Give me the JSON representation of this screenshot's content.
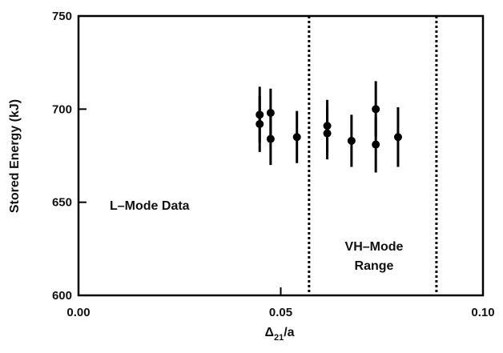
{
  "chart_data": {
    "type": "scatter",
    "xlabel": "Δ21/a",
    "xlabel_main": "Δ",
    "xlabel_sub": "21",
    "xlabel_tail": "/a",
    "ylabel": "Stored Energy (kJ)",
    "xlim": [
      0.0,
      0.1
    ],
    "ylim": [
      600,
      750
    ],
    "x_ticks": [
      0.0,
      0.05,
      0.1
    ],
    "x_tick_labels": [
      "0.00",
      "0.05",
      "0.10"
    ],
    "y_ticks": [
      600,
      650,
      700,
      750
    ],
    "y_tick_labels": [
      "600",
      "650",
      "700",
      "750"
    ],
    "grid": false,
    "annotations": [
      "L–Mode Data",
      "VH–Mode",
      "Range"
    ],
    "vlines": [
      0.057,
      0.0885
    ],
    "points": [
      {
        "x": 0.0448,
        "y": 697,
        "err": 15
      },
      {
        "x": 0.0448,
        "y": 692,
        "err": 15
      },
      {
        "x": 0.0475,
        "y": 698,
        "err": 13
      },
      {
        "x": 0.0475,
        "y": 684,
        "err": 14
      },
      {
        "x": 0.054,
        "y": 685,
        "err": 14
      },
      {
        "x": 0.0615,
        "y": 691,
        "err": 14
      },
      {
        "x": 0.0615,
        "y": 687,
        "err": 14
      },
      {
        "x": 0.0675,
        "y": 683,
        "err": 14
      },
      {
        "x": 0.0735,
        "y": 700,
        "err": 15
      },
      {
        "x": 0.0735,
        "y": 681,
        "err": 15
      },
      {
        "x": 0.079,
        "y": 685,
        "err": 16
      }
    ]
  }
}
